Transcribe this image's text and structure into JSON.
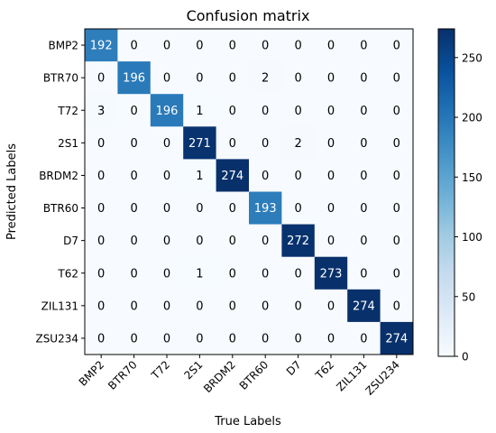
{
  "chart_data": {
    "type": "heatmap",
    "title": "Confusion matrix",
    "xlabel": "True Labels",
    "ylabel": "Predicted Labels",
    "x_categories": [
      "BMP2",
      "BTR70",
      "T72",
      "2S1",
      "BRDM2",
      "BTR60",
      "D7",
      "T62",
      "ZIL131",
      "ZSU234"
    ],
    "y_categories": [
      "BMP2",
      "BTR70",
      "T72",
      "2S1",
      "BRDM2",
      "BTR60",
      "D7",
      "T62",
      "ZIL131",
      "ZSU234"
    ],
    "values": [
      [
        192,
        0,
        0,
        0,
        0,
        0,
        0,
        0,
        0,
        0
      ],
      [
        0,
        196,
        0,
        0,
        0,
        2,
        0,
        0,
        0,
        0
      ],
      [
        3,
        0,
        196,
        1,
        0,
        0,
        0,
        0,
        0,
        0
      ],
      [
        0,
        0,
        0,
        271,
        0,
        0,
        2,
        0,
        0,
        0
      ],
      [
        0,
        0,
        0,
        1,
        274,
        0,
        0,
        0,
        0,
        0
      ],
      [
        0,
        0,
        0,
        0,
        0,
        193,
        0,
        0,
        0,
        0
      ],
      [
        0,
        0,
        0,
        0,
        0,
        0,
        272,
        0,
        0,
        0
      ],
      [
        0,
        0,
        0,
        1,
        0,
        0,
        0,
        273,
        0,
        0
      ],
      [
        0,
        0,
        0,
        0,
        0,
        0,
        0,
        0,
        274,
        0
      ],
      [
        0,
        0,
        0,
        0,
        0,
        0,
        0,
        0,
        0,
        274
      ]
    ],
    "colormap": "Blues",
    "vmin": 0,
    "vmax": 274,
    "colorbar_ticks": [
      0,
      50,
      100,
      150,
      200,
      250
    ],
    "grid": false
  }
}
